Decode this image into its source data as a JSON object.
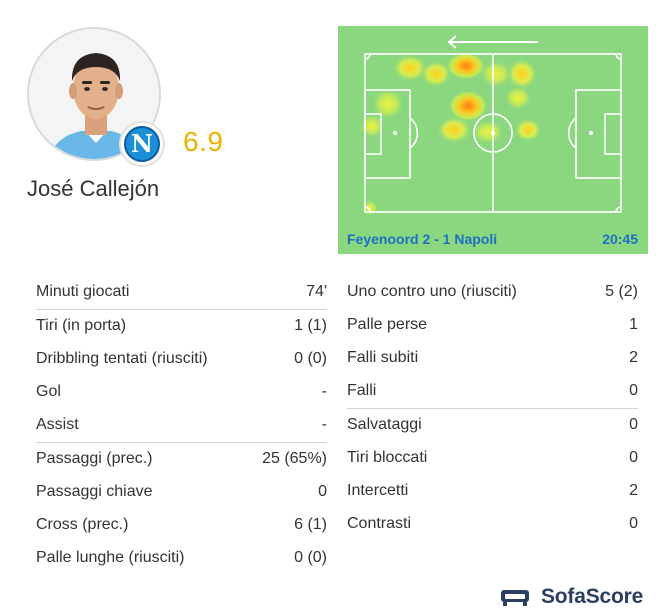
{
  "player": {
    "name": "José Callejón",
    "rating": "6.9",
    "club_badge_letter": "N",
    "club_color": "#1d8fd6",
    "rating_color": "#e8b200"
  },
  "heatmap": {
    "direction_icon": "arrow-left-icon",
    "match": "Feyenoord 2 - 1 Napoli",
    "time": "20:45",
    "pitch_color": "#8ad77f",
    "label_color": "#1f6fc2"
  },
  "stats_left": [
    {
      "label": "Minuti giocati",
      "value": "74'"
    },
    {
      "label": "Tiri (in porta)",
      "value": "1 (1)"
    },
    {
      "label": "Dribbling tentati (riusciti)",
      "value": "0 (0)"
    },
    {
      "label": "Gol",
      "value": "-"
    },
    {
      "label": "Assist",
      "value": "-"
    },
    {
      "label": "Passaggi (prec.)",
      "value": "25 (65%)"
    },
    {
      "label": "Passaggi chiave",
      "value": "0"
    },
    {
      "label": "Cross (prec.)",
      "value": "6 (1)"
    },
    {
      "label": "Palle lunghe (riusciti)",
      "value": "0 (0)"
    }
  ],
  "stats_right": [
    {
      "label": "Uno contro uno (riusciti)",
      "value": "5 (2)"
    },
    {
      "label": "Palle perse",
      "value": "1"
    },
    {
      "label": "Falli subiti",
      "value": "2"
    },
    {
      "label": "Falli",
      "value": "0"
    },
    {
      "label": "Salvataggi",
      "value": "0"
    },
    {
      "label": "Tiri bloccati",
      "value": "0"
    },
    {
      "label": "Intercetti",
      "value": "2"
    },
    {
      "label": "Contrasti",
      "value": "0"
    }
  ],
  "brand": {
    "name": "SofaScore",
    "icon": "sofascore-logo-icon",
    "color": "#2c3e61"
  }
}
